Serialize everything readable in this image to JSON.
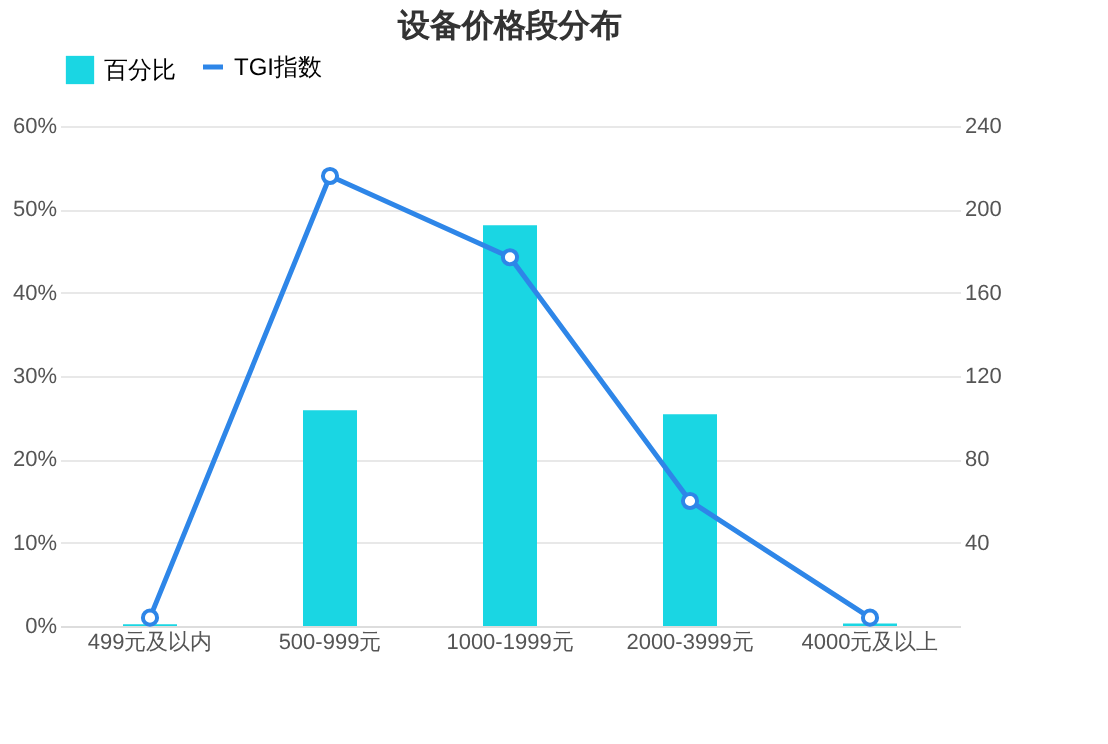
{
  "chart_data": {
    "type": "bar",
    "title": "设备价格段分布",
    "categories": [
      "499元及以内",
      "500-999元",
      "1000-1999元",
      "2000-3999元",
      "4000元及以上"
    ],
    "series": [
      {
        "name": "百分比",
        "color": "#1ad6e3",
        "values": [
          0.2,
          25.9,
          48.1,
          25.4,
          0.3
        ]
      },
      {
        "name": "TGI指数",
        "type": "line",
        "axis": "y2",
        "color": "#2e86e8",
        "marker": "circle",
        "values": [
          4,
          216,
          177,
          60,
          4
        ]
      }
    ],
    "ylim": [
      0,
      60
    ],
    "yticks": [
      {
        "value": 0,
        "label": "0%"
      },
      {
        "value": 10,
        "label": "10%"
      },
      {
        "value": 20,
        "label": "20%"
      },
      {
        "value": 30,
        "label": "30%"
      },
      {
        "value": 40,
        "label": "40%"
      },
      {
        "value": 50,
        "label": "50%"
      },
      {
        "value": 60,
        "label": "60%"
      }
    ],
    "y2lim": [
      0,
      240
    ],
    "y2ticks": [
      40,
      80,
      120,
      160,
      200,
      240
    ],
    "grid": "y",
    "legend": "top"
  }
}
